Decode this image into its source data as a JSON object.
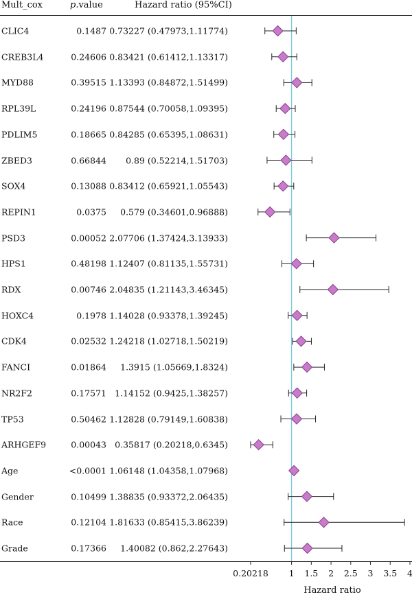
{
  "header": {
    "name": "Mult_cox",
    "p_italic": "p",
    "p_rest": ".value",
    "hr": "Hazard ratio (95%CI)"
  },
  "chart_data": {
    "type": "forest",
    "xlabel": "Hazard ratio",
    "reference_line": 1,
    "xlim": [
      0.20218,
      4
    ],
    "xticks": [
      0.20218,
      1,
      1.5,
      2,
      2.5,
      3,
      3.5,
      4
    ],
    "xtick_labels": [
      "0.20218",
      "1",
      "1.5",
      "2",
      "2.5",
      "3",
      "3.5",
      "4"
    ],
    "colors": {
      "marker": "#c77cc9",
      "marker_edge": "#8a3d8c",
      "reference": "#7ec8dc",
      "ci": "#222222"
    },
    "rows": [
      {
        "name": "CLIC4",
        "p": "0.1487",
        "hr_text": "0.73227 (0.47973,1.11774)",
        "hr": 0.73227,
        "lo": 0.47973,
        "hi": 1.11774
      },
      {
        "name": "CREB3L4",
        "p": "0.24606",
        "hr_text": "0.83421 (0.61412,1.13317)",
        "hr": 0.83421,
        "lo": 0.61412,
        "hi": 1.13317
      },
      {
        "name": "MYD88",
        "p": "0.39515",
        "hr_text": "1.13393 (0.84872,1.51499)",
        "hr": 1.13393,
        "lo": 0.84872,
        "hi": 1.51499
      },
      {
        "name": "RPL39L",
        "p": "0.24196",
        "hr_text": "0.87544 (0.70058,1.09395)",
        "hr": 0.87544,
        "lo": 0.70058,
        "hi": 1.09395
      },
      {
        "name": "PDLIM5",
        "p": "0.18665",
        "hr_text": "0.84285 (0.65395,1.08631)",
        "hr": 0.84285,
        "lo": 0.65395,
        "hi": 1.08631
      },
      {
        "name": "ZBED3",
        "p": "0.66844",
        "hr_text": "0.89 (0.52214,1.51703)",
        "hr": 0.89,
        "lo": 0.52214,
        "hi": 1.51703
      },
      {
        "name": "SOX4",
        "p": "0.13088",
        "hr_text": "0.83412 (0.65921,1.05543)",
        "hr": 0.83412,
        "lo": 0.65921,
        "hi": 1.05543
      },
      {
        "name": "REPIN1",
        "p": "0.0375",
        "hr_text": "0.579 (0.34601,0.96888)",
        "hr": 0.579,
        "lo": 0.34601,
        "hi": 0.96888
      },
      {
        "name": "PSD3",
        "p": "0.00052",
        "hr_text": "2.07706 (1.37424,3.13933)",
        "hr": 2.07706,
        "lo": 1.37424,
        "hi": 3.13933
      },
      {
        "name": "HPS1",
        "p": "0.48198",
        "hr_text": "1.12407 (0.81135,1.55731)",
        "hr": 1.12407,
        "lo": 0.81135,
        "hi": 1.55731
      },
      {
        "name": "RDX",
        "p": "0.00746",
        "hr_text": "2.04835 (1.21143,3.46345)",
        "hr": 2.04835,
        "lo": 1.21143,
        "hi": 3.46345
      },
      {
        "name": "HOXC4",
        "p": "0.1978",
        "hr_text": "1.14028 (0.93378,1.39245)",
        "hr": 1.14028,
        "lo": 0.93378,
        "hi": 1.39245
      },
      {
        "name": "CDK4",
        "p": "0.02532",
        "hr_text": "1.24218 (1.02718,1.50219)",
        "hr": 1.24218,
        "lo": 1.02718,
        "hi": 1.50219
      },
      {
        "name": "FANCI",
        "p": "0.01864",
        "hr_text": "1.3915 (1.05669,1.8324)",
        "hr": 1.3915,
        "lo": 1.05669,
        "hi": 1.8324
      },
      {
        "name": "NR2F2",
        "p": "0.17571",
        "hr_text": "1.14152 (0.9425,1.38257)",
        "hr": 1.14152,
        "lo": 0.9425,
        "hi": 1.38257
      },
      {
        "name": "TP53",
        "p": "0.50462",
        "hr_text": "1.12828 (0.79149,1.60838)",
        "hr": 1.12828,
        "lo": 0.79149,
        "hi": 1.60838
      },
      {
        "name": "ARHGEF9",
        "p": "0.00043",
        "hr_text": "0.35817 (0.20218,0.6345)",
        "hr": 0.35817,
        "lo": 0.20218,
        "hi": 0.6345
      },
      {
        "name": "Age",
        "p": "<0.0001",
        "hr_text": "1.06148 (1.04358,1.07968)",
        "hr": 1.06148,
        "lo": 1.04358,
        "hi": 1.07968
      },
      {
        "name": "Gender",
        "p": "0.10499",
        "hr_text": "1.38835 (0.93372,2.06435)",
        "hr": 1.38835,
        "lo": 0.93372,
        "hi": 2.06435
      },
      {
        "name": "Race",
        "p": "0.12104",
        "hr_text": "1.81633 (0.85415,3.86239)",
        "hr": 1.81633,
        "lo": 0.85415,
        "hi": 3.86239
      },
      {
        "name": "Grade",
        "p": "0.17366",
        "hr_text": "1.40082 (0.862,2.27643)",
        "hr": 1.40082,
        "lo": 0.862,
        "hi": 2.27643
      }
    ]
  }
}
